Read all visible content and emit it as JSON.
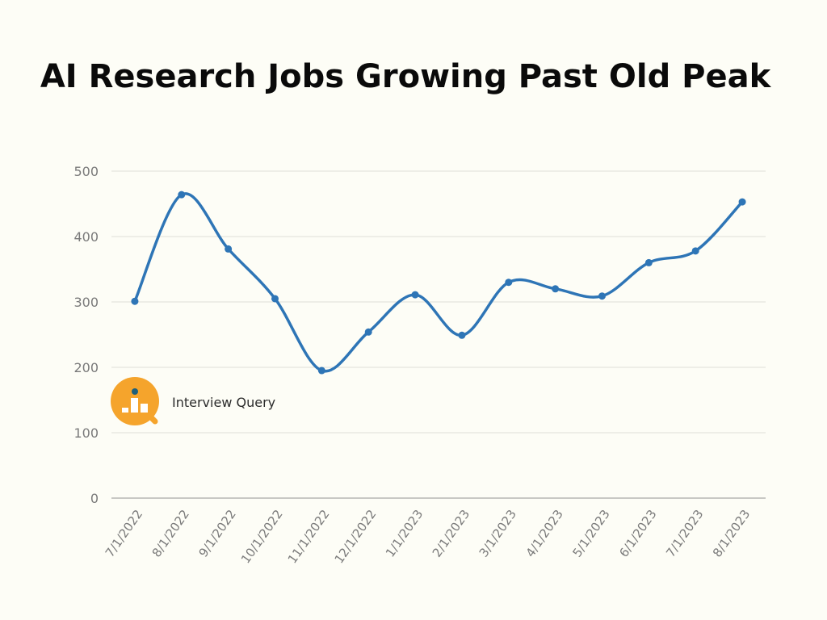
{
  "title": "AI Research Jobs Growing Past Old Peak",
  "logo": {
    "text": "Interview Query",
    "icon": "magnifier-bar-chart-icon",
    "color": "#f5a42c",
    "dot_color": "#1f5f7a"
  },
  "chart_data": {
    "type": "line",
    "title": "AI Research Jobs Growing Past Old Peak",
    "xlabel": "",
    "ylabel": "",
    "ylim": [
      0,
      500
    ],
    "yticks": [
      0,
      100,
      200,
      300,
      400,
      500
    ],
    "grid": true,
    "legend": "none",
    "categories": [
      "7/1/2022",
      "8/1/2022",
      "9/1/2022",
      "10/1/2022",
      "11/1/2022",
      "12/1/2022",
      "1/1/2023",
      "2/1/2023",
      "3/1/2023",
      "4/1/2023",
      "5/1/2023",
      "6/1/2023",
      "7/1/2023",
      "8/1/2023"
    ],
    "series": [
      {
        "name": "AI Research Jobs",
        "color": "#2e75b6",
        "smooth": true,
        "values": [
          301,
          464,
          381,
          305,
          195,
          254,
          311,
          249,
          330,
          320,
          309,
          360,
          378,
          453
        ]
      }
    ]
  }
}
